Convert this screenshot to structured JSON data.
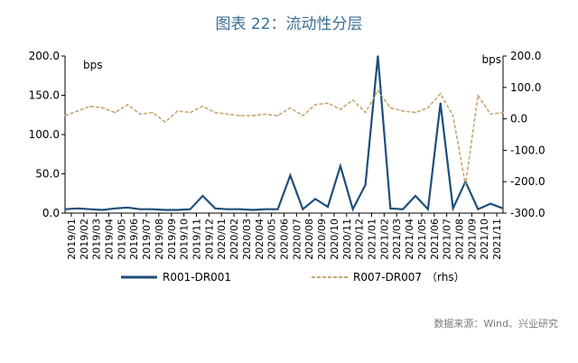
{
  "title": "图表 22：流动性分层",
  "source": "数据来源：Wind、兴业研究",
  "chart_data": {
    "type": "line",
    "left_unit": "bps",
    "right_unit": "bps",
    "left_ticks": [
      "0.0",
      "50.0",
      "100.0",
      "150.0",
      "200.0"
    ],
    "right_ticks": [
      "-300.0",
      "-200.0",
      "-100.0",
      "0.0",
      "100.0",
      "200.0"
    ],
    "ylim_left": [
      0,
      200
    ],
    "ylim_right": [
      -300,
      200
    ],
    "x_ticks": [
      "2019/01",
      "2019/02",
      "2019/03",
      "2019/04",
      "2019/05",
      "2019/06",
      "2019/07",
      "2019/08",
      "2019/09",
      "2019/10",
      "2019/11",
      "2019/12",
      "2020/01",
      "2020/02",
      "2020/03",
      "2020/04",
      "2020/05",
      "2020/06",
      "2020/07",
      "2020/08",
      "2020/09",
      "2020/10",
      "2020/11",
      "2020/12",
      "2021/01",
      "2021/02",
      "2021/03",
      "2021/04",
      "2021/05",
      "2021/06",
      "2021/07",
      "2021/08",
      "2021/09",
      "2021/10",
      "2021/11"
    ],
    "series": [
      {
        "name": "R001-DR001",
        "axis": "left",
        "color": "#1f4e79",
        "style": "solid",
        "x": [
          0,
          1,
          2,
          3,
          4,
          5,
          6,
          7,
          8,
          9,
          10,
          11,
          12,
          13,
          14,
          15,
          16,
          17,
          18,
          19,
          20,
          21,
          22,
          23,
          24,
          25,
          26,
          27,
          28,
          29,
          30,
          31,
          32,
          33,
          34,
          35
        ],
        "values": [
          5,
          6,
          5,
          4,
          6,
          7,
          5,
          5,
          4,
          4,
          5,
          22,
          6,
          5,
          5,
          4,
          5,
          5,
          48,
          5,
          18,
          8,
          60,
          5,
          36,
          200,
          6,
          5,
          22,
          5,
          140,
          6,
          40,
          5,
          12,
          6
        ]
      },
      {
        "name": "R007-DR007",
        "axis": "right",
        "color": "#c8a775",
        "style": "dashed",
        "x": [
          0,
          1,
          2,
          3,
          4,
          5,
          6,
          7,
          8,
          9,
          10,
          11,
          12,
          13,
          14,
          15,
          16,
          17,
          18,
          19,
          20,
          21,
          22,
          23,
          24,
          25,
          26,
          27,
          28,
          29,
          30,
          31,
          32,
          33,
          34,
          35
        ],
        "values": [
          10,
          25,
          40,
          35,
          20,
          45,
          15,
          20,
          -10,
          25,
          20,
          40,
          20,
          15,
          10,
          10,
          15,
          10,
          35,
          10,
          45,
          50,
          30,
          60,
          20,
          90,
          35,
          25,
          20,
          35,
          80,
          10,
          -210,
          75,
          15,
          20
        ]
      }
    ]
  }
}
